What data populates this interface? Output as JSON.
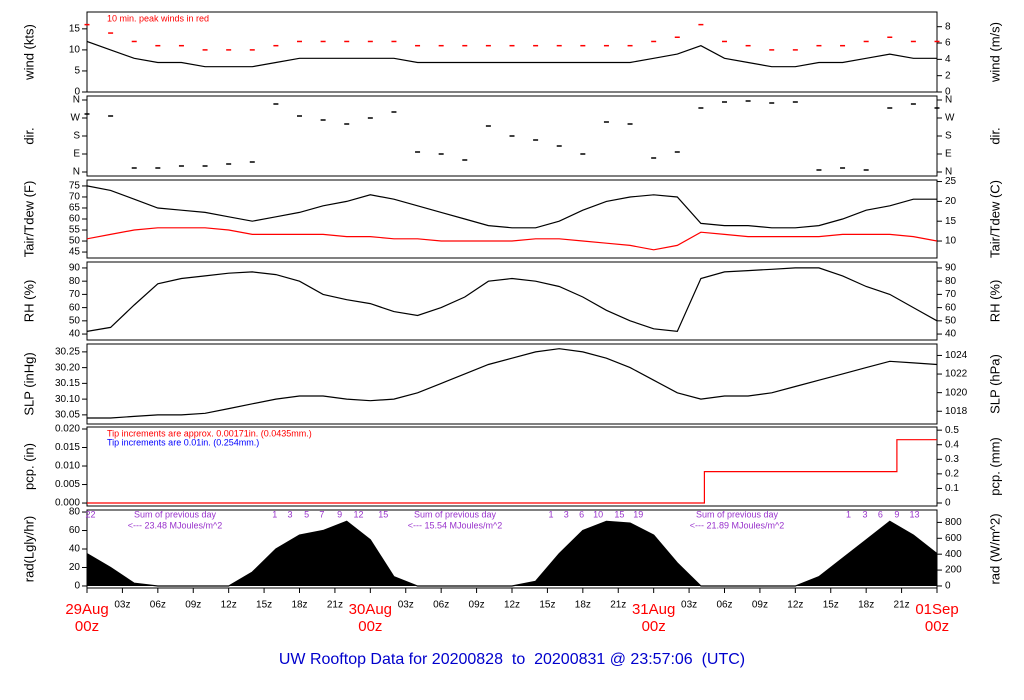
{
  "title": "UW Rooftop Data for 20200828  to  20200831 @ 23:57:06  (UTC)",
  "chart_data": [
    {
      "type": "line",
      "ylabel": "wind (kts)",
      "y2label": "wind (m/s)",
      "xlim": [
        0,
        72
      ],
      "ylim": [
        0,
        19
      ],
      "yticks": [
        0,
        5,
        10,
        15
      ],
      "y2lim": [
        0,
        9.8
      ],
      "y2ticks": [
        0,
        2,
        4,
        6,
        8
      ],
      "annotations": [
        {
          "text": "10 min. peak winds in red",
          "color": "#ff0000"
        }
      ],
      "x": [
        0,
        2,
        4,
        6,
        8,
        10,
        12,
        14,
        16,
        18,
        20,
        22,
        24,
        26,
        28,
        30,
        32,
        34,
        36,
        38,
        40,
        42,
        44,
        46,
        48,
        50,
        52,
        54,
        56,
        58,
        60,
        62,
        64,
        66,
        68,
        70,
        72
      ],
      "series": [
        {
          "color": "#000000",
          "values": [
            12,
            10,
            8,
            7,
            7,
            6,
            6,
            6,
            7,
            8,
            8,
            8,
            8,
            8,
            7,
            7,
            7,
            7,
            7,
            7,
            7,
            7,
            7,
            7,
            8,
            9,
            11,
            8,
            7,
            6,
            6,
            7,
            7,
            8,
            9,
            8,
            8
          ]
        },
        {
          "color": "#ff0000",
          "marker": "dash",
          "values": [
            16,
            14,
            12,
            11,
            11,
            10,
            10,
            10,
            11,
            12,
            12,
            12,
            12,
            12,
            11,
            11,
            11,
            11,
            11,
            11,
            11,
            11,
            11,
            11,
            12,
            13,
            16,
            12,
            11,
            10,
            10,
            11,
            11,
            12,
            13,
            12,
            12
          ]
        }
      ]
    },
    {
      "type": "scatter",
      "ylabel": "dir.",
      "y2label": "dir.",
      "xlim": [
        0,
        72
      ],
      "ylim": [
        -20,
        380
      ],
      "yticks": [
        {
          "value": 0,
          "label": "N"
        },
        {
          "value": 90,
          "label": "E"
        },
        {
          "value": 180,
          "label": "S"
        },
        {
          "value": 270,
          "label": "W"
        },
        {
          "value": 360,
          "label": "N"
        }
      ],
      "y2lim": [
        -20,
        380
      ],
      "y2ticks": [
        {
          "value": 0,
          "label": "N"
        },
        {
          "value": 90,
          "label": "E"
        },
        {
          "value": 180,
          "label": "S"
        },
        {
          "value": 270,
          "label": "W"
        },
        {
          "value": 360,
          "label": "N"
        }
      ],
      "x": [
        0,
        2,
        4,
        6,
        8,
        10,
        12,
        14,
        16,
        18,
        20,
        22,
        24,
        26,
        28,
        30,
        32,
        34,
        36,
        38,
        40,
        42,
        44,
        46,
        48,
        50,
        52,
        54,
        56,
        58,
        60,
        62,
        64,
        66,
        68,
        70,
        72
      ],
      "series": [
        {
          "color": "#000000",
          "marker": "dash",
          "values": [
            290,
            280,
            20,
            20,
            30,
            30,
            40,
            50,
            340,
            280,
            260,
            240,
            270,
            300,
            100,
            90,
            60,
            230,
            180,
            160,
            130,
            90,
            250,
            240,
            70,
            100,
            320,
            350,
            355,
            345,
            350,
            10,
            20,
            10,
            320,
            340,
            320
          ]
        }
      ]
    },
    {
      "type": "line",
      "ylabel": "Tair/Tdew (F)",
      "y2label": "Tair/Tdew (C)",
      "xlim": [
        0,
        72
      ],
      "ylim": [
        42.3,
        77.7
      ],
      "yticks": [
        45,
        50,
        55,
        60,
        65,
        70,
        75
      ],
      "y2lim": [
        5.72,
        25.39
      ],
      "y2ticks": [
        10,
        15,
        20,
        25
      ],
      "x": [
        0,
        2,
        4,
        6,
        8,
        10,
        12,
        14,
        16,
        18,
        20,
        22,
        24,
        26,
        28,
        30,
        32,
        34,
        36,
        38,
        40,
        42,
        44,
        46,
        48,
        50,
        52,
        54,
        56,
        58,
        60,
        62,
        64,
        66,
        68,
        70,
        72
      ],
      "series": [
        {
          "color": "#000000",
          "values": [
            75,
            73,
            69,
            65,
            64,
            63,
            61,
            59,
            61,
            63,
            66,
            68,
            71,
            69,
            66,
            63,
            60,
            57,
            56,
            56,
            59,
            64,
            68,
            70,
            71,
            70,
            58,
            57,
            57,
            56,
            56,
            57,
            60,
            64,
            66,
            69,
            69
          ]
        },
        {
          "color": "#ff0000",
          "values": [
            51,
            53,
            55,
            56,
            56,
            56,
            55,
            53,
            53,
            53,
            53,
            52,
            52,
            51,
            51,
            50,
            50,
            50,
            50,
            51,
            51,
            50,
            49,
            48,
            46,
            48,
            54,
            53,
            52,
            52,
            52,
            52,
            53,
            53,
            53,
            52,
            50
          ]
        }
      ]
    },
    {
      "type": "line",
      "ylabel": "RH (%)",
      "y2label": "RH (%)",
      "xlim": [
        0,
        72
      ],
      "ylim": [
        35.5,
        94.5
      ],
      "yticks": [
        40,
        50,
        60,
        70,
        80,
        90
      ],
      "y2lim": [
        35.5,
        94.5
      ],
      "y2ticks": [
        40,
        50,
        60,
        70,
        80,
        90
      ],
      "x": [
        0,
        2,
        4,
        6,
        8,
        10,
        12,
        14,
        16,
        18,
        20,
        22,
        24,
        26,
        28,
        30,
        32,
        34,
        36,
        38,
        40,
        42,
        44,
        46,
        48,
        50,
        52,
        54,
        56,
        58,
        60,
        62,
        64,
        66,
        68,
        70,
        72
      ],
      "series": [
        {
          "color": "#000000",
          "values": [
            42,
            45,
            62,
            78,
            82,
            84,
            86,
            87,
            85,
            80,
            70,
            66,
            63,
            57,
            54,
            60,
            68,
            80,
            82,
            80,
            76,
            68,
            58,
            50,
            44,
            42,
            82,
            87,
            88,
            89,
            90,
            90,
            84,
            76,
            70,
            60,
            50
          ]
        }
      ]
    },
    {
      "type": "line",
      "ylabel": "SLP (inHg)",
      "y2label": "SLP (hPa)",
      "xlim": [
        0,
        72
      ],
      "ylim": [
        30.021,
        30.275
      ],
      "yticks": [
        30.05,
        {
          "value": 30.1,
          "label": "30.10"
        },
        30.15,
        {
          "value": 30.2,
          "label": "30.20"
        },
        30.25
      ],
      "y2lim": [
        1016.63,
        1025.23
      ],
      "y2ticks": [
        1018,
        1020,
        1022,
        1024
      ],
      "x": [
        0,
        2,
        4,
        6,
        8,
        10,
        12,
        14,
        16,
        18,
        20,
        22,
        24,
        26,
        28,
        30,
        32,
        34,
        36,
        38,
        40,
        42,
        44,
        46,
        48,
        50,
        52,
        54,
        56,
        58,
        60,
        62,
        64,
        66,
        68,
        70,
        72
      ],
      "series": [
        {
          "color": "#000000",
          "values": [
            30.04,
            30.04,
            30.045,
            30.05,
            30.05,
            30.055,
            30.07,
            30.085,
            30.1,
            30.11,
            30.11,
            30.1,
            30.095,
            30.1,
            30.12,
            30.15,
            30.18,
            30.21,
            30.23,
            30.25,
            30.26,
            30.25,
            30.23,
            30.2,
            30.16,
            30.12,
            30.1,
            30.11,
            30.11,
            30.12,
            30.14,
            30.16,
            30.18,
            30.2,
            30.22,
            30.215,
            30.21
          ]
        }
      ]
    },
    {
      "type": "line",
      "ylabel": "pcp. (in)",
      "y2label": "pcp. (mm)",
      "xlim": [
        0,
        72
      ],
      "ylim": [
        -0.0008,
        0.02054
      ],
      "yticks": [
        {
          "value": 0,
          "label": "0.000"
        },
        {
          "value": 0.005,
          "label": "0.005"
        },
        {
          "value": 0.01,
          "label": "0.010"
        },
        {
          "value": 0.015,
          "label": "0.015"
        },
        {
          "value": 0.02,
          "label": "0.020"
        }
      ],
      "y2lim": [
        -0.0206,
        0.5217
      ],
      "y2ticks": [
        0,
        0.1,
        0.2,
        0.3,
        0.4,
        0.5
      ],
      "annotations": [
        {
          "text": "Tip increments are approx. 0.00171in. (0.0435mm.)",
          "color": "#ff0000"
        },
        {
          "text": "Tip increments are 0.01in. (0.254mm.)",
          "color": "#0000ff"
        }
      ],
      "x": [
        0,
        52.3,
        52.3,
        68.6,
        68.6,
        72
      ],
      "series": [
        {
          "color": "#ff0000",
          "values": [
            0,
            0,
            0.0085,
            0.0085,
            0.0171,
            0.0171
          ]
        }
      ]
    },
    {
      "type": "area",
      "ylabel": "rad(Lgly/hr)",
      "y2label": "rad (W/m^2)",
      "xlim": [
        0,
        72
      ],
      "ylim": [
        -2.2,
        82.2
      ],
      "yticks": [
        0,
        20,
        40,
        60,
        80
      ],
      "y2lim": [
        -25.6,
        956
      ],
      "y2ticks": [
        0,
        200,
        400,
        600,
        800
      ],
      "daily_sums": [
        {
          "title": "Sum of previous day",
          "text": "<--- 23.48 MJoules/m^2"
        },
        {
          "title": "Sum of previous day",
          "text": "<--- 15.54 MJoules/m^2"
        },
        {
          "title": "Sum of previous day",
          "text": "<--- 21.89 MJoules/m^2"
        }
      ],
      "hour_marks": [
        {
          "x": 0.3,
          "label": "22"
        },
        {
          "x": 15.9,
          "label": "1"
        },
        {
          "x": 17.2,
          "label": "3"
        },
        {
          "x": 18.6,
          "label": "5"
        },
        {
          "x": 19.9,
          "label": "7"
        },
        {
          "x": 21.4,
          "label": "9"
        },
        {
          "x": 23,
          "label": "12"
        },
        {
          "x": 25.1,
          "label": "15"
        },
        {
          "x": 39.3,
          "label": "1"
        },
        {
          "x": 40.6,
          "label": "3"
        },
        {
          "x": 41.9,
          "label": "6"
        },
        {
          "x": 43.3,
          "label": "10"
        },
        {
          "x": 45.1,
          "label": "15"
        },
        {
          "x": 46.7,
          "label": "19"
        },
        {
          "x": 64.5,
          "label": "1"
        },
        {
          "x": 65.9,
          "label": "3"
        },
        {
          "x": 67.2,
          "label": "6"
        },
        {
          "x": 68.6,
          "label": "9"
        },
        {
          "x": 70.1,
          "label": "13"
        }
      ],
      "x": [
        0,
        2,
        4,
        6,
        8,
        10,
        12,
        14,
        16,
        18,
        20,
        22,
        24,
        26,
        28,
        30,
        32,
        34,
        36,
        38,
        40,
        42,
        44,
        46,
        48,
        50,
        52,
        54,
        56,
        58,
        60,
        62,
        64,
        66,
        68,
        70,
        72
      ],
      "series": [
        {
          "color": "#000000",
          "values": [
            35,
            20,
            3,
            0,
            0,
            0,
            0,
            15,
            40,
            55,
            60,
            70,
            50,
            10,
            0,
            0,
            0,
            0,
            0,
            5,
            35,
            60,
            70,
            68,
            55,
            25,
            0,
            0,
            0,
            0,
            0,
            10,
            30,
            50,
            70,
            55,
            35
          ]
        }
      ],
      "xticks": [
        {
          "value": 0,
          "label": "29Aug",
          "sublabel": "00z"
        },
        {
          "value": 3,
          "label": "03z"
        },
        {
          "value": 6,
          "label": "06z"
        },
        {
          "value": 9,
          "label": "09z"
        },
        {
          "value": 12,
          "label": "12z"
        },
        {
          "value": 15,
          "label": "15z"
        },
        {
          "value": 18,
          "label": "18z"
        },
        {
          "value": 21,
          "label": "21z"
        },
        {
          "value": 24,
          "label": "30Aug",
          "sublabel": "00z"
        },
        {
          "value": 27,
          "label": "03z"
        },
        {
          "value": 30,
          "label": "06z"
        },
        {
          "value": 33,
          "label": "09z"
        },
        {
          "value": 36,
          "label": "12z"
        },
        {
          "value": 39,
          "label": "15z"
        },
        {
          "value": 42,
          "label": "18z"
        },
        {
          "value": 45,
          "label": "21z"
        },
        {
          "value": 48,
          "label": "31Aug",
          "sublabel": "00z"
        },
        {
          "value": 51,
          "label": "03z"
        },
        {
          "value": 54,
          "label": "06z"
        },
        {
          "value": 57,
          "label": "09z"
        },
        {
          "value": 60,
          "label": "12z"
        },
        {
          "value": 63,
          "label": "15z"
        },
        {
          "value": 66,
          "label": "18z"
        },
        {
          "value": 69,
          "label": "21z"
        },
        {
          "value": 72,
          "label": "01Sep",
          "sublabel": "00z"
        }
      ]
    }
  ]
}
